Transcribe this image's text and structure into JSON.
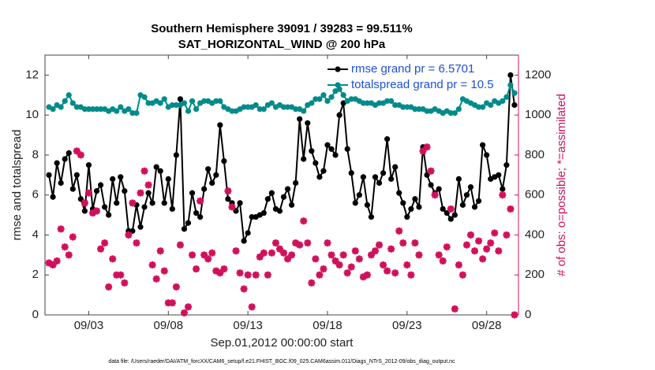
{
  "chart_data": {
    "type": "line",
    "title": "Southern Hemisphere 39091 / 39283 = 99.511%",
    "subtitle": "SAT_HORIZONTAL_WIND @ 200 hPa",
    "xlabel": "Sep.01,2012 00:00:00 start",
    "ylabel": "rmse and totalspread",
    "y2label": "# of obs: o=possible; *=assimilated",
    "note": "data file: /Users/raeder/DAI/ATM_forcXX/CAM6_setup/f.e21.FHIST_BGC.f09_025.CAM6assim.011/Diags_NTrS_2012-09/obs_diag_output.nc",
    "legend": "upper right",
    "grid": false,
    "xlim": [
      -0.75,
      29
    ],
    "xticks": [
      {
        "value": 2,
        "label": "09/03"
      },
      {
        "value": 7,
        "label": "09/08"
      },
      {
        "value": 12,
        "label": "09/13"
      },
      {
        "value": 17,
        "label": "09/18"
      },
      {
        "value": 22,
        "label": "09/23"
      },
      {
        "value": 27,
        "label": "09/28"
      }
    ],
    "ylim": [
      0,
      13
    ],
    "yticks": [
      0,
      2,
      4,
      6,
      8,
      10,
      12
    ],
    "y2lim": [
      0,
      1300
    ],
    "y2ticks": [
      0,
      200,
      400,
      600,
      800,
      1000,
      1200
    ],
    "y2color": "#d0105a",
    "x": [
      -0.5,
      -0.25,
      0,
      0.25,
      0.5,
      0.75,
      1,
      1.25,
      1.5,
      1.75,
      2,
      2.25,
      2.5,
      2.75,
      3,
      3.25,
      3.5,
      3.75,
      4,
      4.25,
      4.5,
      4.75,
      5,
      5.25,
      5.5,
      5.75,
      6,
      6.25,
      6.5,
      6.75,
      7,
      7.25,
      7.5,
      7.75,
      8,
      8.25,
      8.5,
      8.75,
      9,
      9.25,
      9.5,
      9.75,
      10,
      10.25,
      10.5,
      10.75,
      11,
      11.25,
      11.5,
      11.75,
      12,
      12.25,
      12.5,
      12.75,
      13,
      13.25,
      13.5,
      13.75,
      14,
      14.25,
      14.5,
      14.75,
      15,
      15.25,
      15.5,
      15.75,
      16,
      16.25,
      16.5,
      16.75,
      17,
      17.25,
      17.5,
      17.75,
      18,
      18.25,
      18.5,
      18.75,
      19,
      19.25,
      19.5,
      19.75,
      20,
      20.25,
      20.5,
      20.75,
      21,
      21.25,
      21.5,
      21.75,
      22,
      22.25,
      22.5,
      22.75,
      23,
      23.25,
      23.5,
      23.75,
      24,
      24.25,
      24.5,
      24.75,
      25,
      25.25,
      25.5,
      25.75,
      26,
      26.25,
      26.5,
      26.75,
      27,
      27.25,
      27.5,
      27.75,
      28,
      28.25,
      28.5,
      28.75
    ],
    "series": [
      {
        "name": "rmse grand pr = 6.5701",
        "color": "#000000",
        "marker": "circle",
        "values": [
          7.0,
          5.9,
          7.6,
          6.6,
          7.8,
          8.1,
          6.3,
          7.0,
          5.8,
          5.2,
          7.5,
          5.3,
          6.2,
          6.5,
          5.4,
          5.0,
          6.8,
          5.6,
          6.9,
          6.2,
          4.2,
          4.2,
          5.5,
          4.4,
          5.4,
          6.1,
          5.6,
          7.4,
          7.2,
          5.6,
          6.8,
          5.3,
          8.0,
          10.8,
          4.3,
          4.6,
          6.1,
          5.1,
          4.9,
          6.3,
          7.3,
          6.6,
          7.0,
          9.5,
          7.7,
          5.8,
          5.6,
          5.2,
          5.6,
          3.7,
          4.1,
          4.9,
          4.9,
          5.0,
          5.1,
          5.8,
          6.1,
          5.3,
          5.2,
          5.9,
          6.3,
          5.5,
          6.6,
          9.8,
          7.8,
          9.6,
          8.2,
          7.6,
          6.9,
          7.2,
          8.5,
          8.3,
          8.0,
          10.0,
          10.6,
          8.3,
          7.1,
          5.6,
          6.0,
          6.9,
          5.5,
          4.9,
          6.9,
          6.6,
          7.1,
          8.8,
          6.8,
          7.4,
          6.1,
          5.6,
          4.9,
          5.3,
          5.8,
          5.4,
          8.4,
          7.0,
          6.5,
          6.1,
          6.3,
          5.3,
          5.1,
          4.8,
          5.0,
          6.8,
          5.5,
          6.0,
          6.4,
          5.4,
          5.7,
          8.5,
          8.0,
          6.8,
          6.9,
          7.0,
          6.3,
          7.5,
          12.0,
          10.5
        ]
      },
      {
        "name": "totalspread grand pr = 10.5",
        "color": "#008b8b",
        "marker": "circle",
        "values": [
          10.4,
          10.3,
          10.5,
          10.4,
          10.7,
          11.0,
          10.6,
          10.4,
          10.4,
          10.3,
          10.3,
          10.3,
          10.3,
          10.3,
          10.3,
          10.2,
          10.3,
          10.2,
          10.4,
          10.2,
          10.3,
          10.1,
          10.1,
          11.0,
          10.9,
          10.6,
          10.6,
          10.7,
          10.6,
          10.8,
          10.4,
          10.5,
          10.5,
          10.5,
          10.6,
          10.2,
          10.7,
          10.3,
          10.6,
          10.7,
          10.7,
          10.6,
          10.7,
          10.7,
          10.4,
          10.3,
          10.2,
          10.2,
          10.3,
          10.4,
          10.4,
          10.4,
          10.5,
          10.3,
          10.3,
          10.5,
          10.6,
          10.4,
          10.5,
          10.4,
          10.4,
          10.4,
          10.3,
          10.3,
          10.2,
          10.5,
          10.6,
          10.8,
          10.8,
          11.0,
          10.7,
          10.9,
          11.2,
          11.3,
          11.0,
          10.7,
          10.8,
          10.8,
          10.7,
          10.6,
          10.6,
          10.6,
          10.5,
          10.6,
          10.6,
          10.7,
          10.7,
          10.5,
          10.5,
          10.4,
          10.4,
          10.4,
          10.3,
          10.3,
          10.3,
          10.2,
          10.2,
          10.3,
          10.2,
          10.1,
          10.2,
          10.1,
          10.1,
          10.3,
          10.8,
          10.7,
          10.6,
          10.5,
          10.4,
          10.4,
          10.6,
          10.5,
          10.7,
          10.6,
          10.7,
          10.9,
          11.5,
          11.1
        ]
      },
      {
        "color": "#d0105a",
        "marker": "star",
        "axis": "y2",
        "line": false,
        "values": [
          260,
          250,
          270,
          430,
          340,
          300,
          390,
          820,
          800,
          560,
          610,
          510,
          520,
          330,
          360,
          140,
          280,
          200,
          200,
          160,
          400,
          560,
          360,
          610,
          720,
          650,
          250,
          180,
          320,
          220,
          60,
          60,
          140,
          350,
          10,
          40,
          300,
          230,
          570,
          300,
          280,
          310,
          220,
          210,
          230,
          620,
          540,
          320,
          210,
          130,
          200,
          40,
          200,
          290,
          310,
          200,
          310,
          360,
          330,
          310,
          280,
          300,
          360,
          350,
          470,
          360,
          160,
          280,
          200,
          230,
          360,
          300,
          270,
          250,
          300,
          210,
          240,
          320,
          280,
          190,
          200,
          300,
          320,
          350,
          250,
          220,
          330,
          210,
          420,
          360,
          250,
          200,
          360,
          300,
          820,
          840,
          720,
          600,
          300,
          270,
          340,
          530,
          30,
          250,
          200,
          350,
          400,
          320,
          370,
          280,
          330,
          360,
          410,
          320,
          600,
          400,
          530,
          0
        ]
      }
    ]
  }
}
